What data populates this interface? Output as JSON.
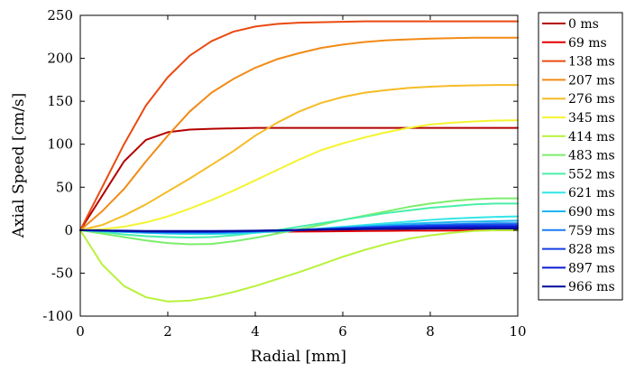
{
  "chart_data": {
    "type": "line",
    "xlabel": "Radial [mm]",
    "ylabel": "Axial Speed [cm/s]",
    "xlim": [
      0,
      10
    ],
    "ylim": [
      -100,
      250
    ],
    "xticks": [
      "0",
      "2",
      "4",
      "6",
      "8",
      "10"
    ],
    "yticks": [
      "-100",
      "-50",
      "0",
      "50",
      "100",
      "150",
      "200",
      "250"
    ],
    "grid": false,
    "legend_position": "right-outside",
    "x": [
      0,
      0.5,
      1,
      1.5,
      2,
      2.5,
      3,
      3.5,
      4,
      4.5,
      5,
      5.5,
      6,
      6.5,
      7,
      7.5,
      8,
      8.5,
      9,
      9.5,
      10
    ],
    "series": [
      {
        "name": "0 ms",
        "color": "#b30000",
        "values": [
          0,
          40,
          80,
          105,
          114,
          117,
          118,
          118.5,
          119,
          119,
          119,
          119,
          119,
          119,
          119,
          119,
          119,
          119,
          119,
          119,
          119
        ]
      },
      {
        "name": "69 ms",
        "color": "#e00000",
        "values": [
          0,
          -0.5,
          -1,
          -1.5,
          -2,
          -2,
          -2,
          -2,
          -2,
          -1.8,
          -1.6,
          -1.4,
          -1.2,
          -1,
          -0.8,
          -0.6,
          -0.5,
          -0.4,
          -0.3,
          -0.2,
          -0.2
        ]
      },
      {
        "name": "138 ms",
        "color": "#ea4a10",
        "values": [
          0,
          50,
          100,
          145,
          178,
          203,
          220,
          231,
          237,
          240,
          241.5,
          242,
          242.5,
          243,
          243,
          243,
          243,
          243,
          243,
          243,
          243
        ]
      },
      {
        "name": "207 ms",
        "color": "#f28a16",
        "values": [
          0,
          22,
          48,
          80,
          110,
          138,
          160,
          176,
          189,
          199,
          206,
          212,
          216,
          219,
          221,
          222,
          223,
          223.5,
          224,
          224,
          224
        ]
      },
      {
        "name": "276 ms",
        "color": "#f6bc26",
        "values": [
          0,
          6,
          17,
          30,
          45,
          60,
          76,
          92,
          110,
          125,
          138,
          148,
          155,
          160,
          163,
          165.5,
          167,
          168,
          168.5,
          169,
          169
        ]
      },
      {
        "name": "345 ms",
        "color": "#f4f432",
        "values": [
          0,
          1,
          4,
          9,
          16,
          25,
          35,
          46,
          58,
          70,
          82,
          93,
          101,
          108,
          114,
          119,
          123,
          125,
          126.5,
          127.5,
          128
        ]
      },
      {
        "name": "414 ms",
        "color": "#b8f23c",
        "values": [
          0,
          -40,
          -65,
          -78,
          -83,
          -82,
          -78,
          -72,
          -65,
          -57,
          -49,
          -40,
          -31,
          -23,
          -16,
          -10,
          -6,
          -3,
          -1,
          0,
          0
        ]
      },
      {
        "name": "483 ms",
        "color": "#7cee6c",
        "values": [
          0,
          -4,
          -8,
          -12,
          -15,
          -16.5,
          -16,
          -13,
          -9,
          -4,
          1,
          6,
          12,
          17,
          22,
          27,
          31,
          34,
          36,
          37,
          37
        ]
      },
      {
        "name": "552 ms",
        "color": "#4aeeaa",
        "values": [
          0,
          -2,
          -5,
          -7,
          -8,
          -8.5,
          -8,
          -6,
          -3,
          0,
          4,
          8,
          12,
          16,
          20,
          23,
          26,
          28,
          30,
          31,
          31
        ]
      },
      {
        "name": "621 ms",
        "color": "#33e6e6",
        "values": [
          0,
          -1,
          -2,
          -3,
          -4,
          -4.5,
          -4.5,
          -4,
          -3,
          -1.5,
          0,
          2,
          4,
          6,
          8,
          10,
          12,
          13.5,
          14.5,
          15.5,
          16
        ]
      },
      {
        "name": "690 ms",
        "color": "#1fb6f2",
        "values": [
          0,
          -1,
          -2,
          -3,
          -3.5,
          -3.5,
          -3.5,
          -3,
          -2,
          -1,
          0,
          1.5,
          3,
          4.5,
          6,
          7.5,
          8.5,
          9.5,
          10,
          10.5,
          11
        ]
      },
      {
        "name": "759 ms",
        "color": "#1a7cf0",
        "values": [
          0,
          -0.5,
          -1.5,
          -2,
          -2.5,
          -2.5,
          -2.5,
          -2,
          -1.5,
          -0.5,
          0.5,
          1.5,
          2.5,
          3.5,
          4.5,
          5.5,
          6.3,
          7,
          7.5,
          8,
          8
        ]
      },
      {
        "name": "828 ms",
        "color": "#143ee6",
        "values": [
          0,
          -0.5,
          -1,
          -1.5,
          -2,
          -2,
          -2,
          -1.5,
          -1,
          -0.5,
          0,
          1,
          2,
          3,
          3.8,
          4.5,
          5,
          5.5,
          5.8,
          6,
          6
        ]
      },
      {
        "name": "897 ms",
        "color": "#0a1ad2",
        "values": [
          0,
          -0.5,
          -1,
          -1.5,
          -1.5,
          -1.5,
          -1.5,
          -1.2,
          -0.8,
          -0.3,
          0.2,
          0.8,
          1.4,
          2,
          2.5,
          3,
          3.4,
          3.7,
          4,
          4,
          4
        ]
      },
      {
        "name": "966 ms",
        "color": "#000a9a",
        "values": [
          0,
          -0.3,
          -0.6,
          -0.9,
          -1,
          -1,
          -1,
          -0.8,
          -0.5,
          -0.2,
          0.1,
          0.5,
          0.8,
          1.1,
          1.4,
          1.6,
          1.8,
          1.9,
          2,
          2,
          2
        ]
      }
    ]
  }
}
